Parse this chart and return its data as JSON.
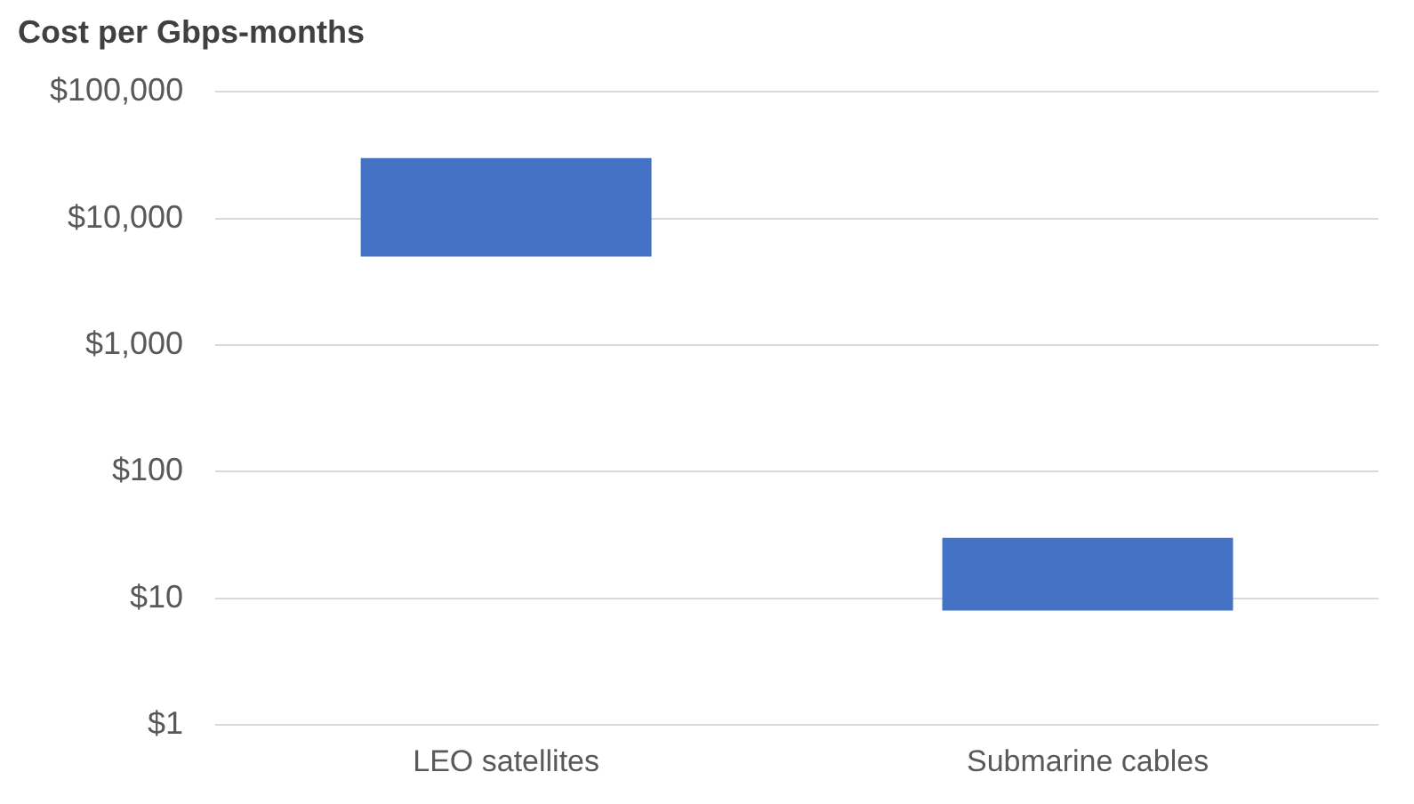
{
  "chart_data": {
    "type": "bar",
    "title": "Cost per Gbps-months",
    "categories": [
      "LEO satellites",
      "Submarine cables"
    ],
    "base": [
      5000,
      8
    ],
    "values": [
      25000,
      22
    ],
    "color": "#4472c4",
    "log": "y",
    "ylim": [
      1,
      100000
    ],
    "yticks": [
      {
        "value": 1,
        "label": "$1"
      },
      {
        "value": 10,
        "label": "$10"
      },
      {
        "value": 100,
        "label": "$100"
      },
      {
        "value": 1000,
        "label": "$1,000"
      },
      {
        "value": 10000,
        "label": "$10,000"
      },
      {
        "value": 100000,
        "label": "$100,000"
      }
    ],
    "grid": "y",
    "legend": false
  }
}
